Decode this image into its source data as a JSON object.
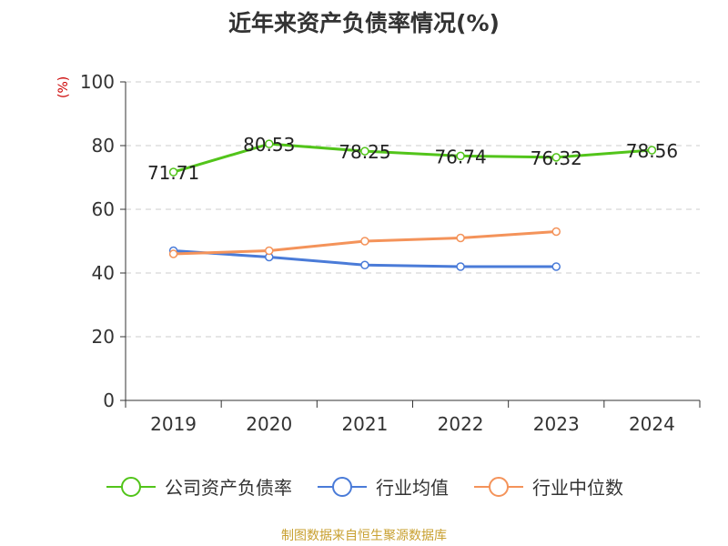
{
  "chart_data": {
    "type": "line",
    "title": "近年来资产负债率情况(%)",
    "ylabel": "(%)",
    "xlabel": "",
    "categories": [
      "2019",
      "2020",
      "2021",
      "2022",
      "2023",
      "2024"
    ],
    "ylim": [
      0,
      100
    ],
    "yticks": [
      0,
      20,
      40,
      60,
      80,
      100
    ],
    "grid": true,
    "legend_position": "bottom",
    "series": [
      {
        "name": "公司资产负债率",
        "color": "#52c41a",
        "values": [
          71.71,
          80.53,
          78.25,
          76.74,
          76.32,
          78.56
        ],
        "labels": [
          "71.71",
          "80.53",
          "78.25",
          "76.74",
          "76.32",
          "78.56"
        ]
      },
      {
        "name": "行业均值",
        "color": "#4a7bd8",
        "values": [
          47.0,
          45.0,
          42.5,
          42.0,
          42.0,
          null
        ]
      },
      {
        "name": "行业中位数",
        "color": "#f4935a",
        "values": [
          46.0,
          47.0,
          50.0,
          51.0,
          53.0,
          null
        ]
      }
    ]
  },
  "source": "制图数据来自恒生聚源数据库"
}
